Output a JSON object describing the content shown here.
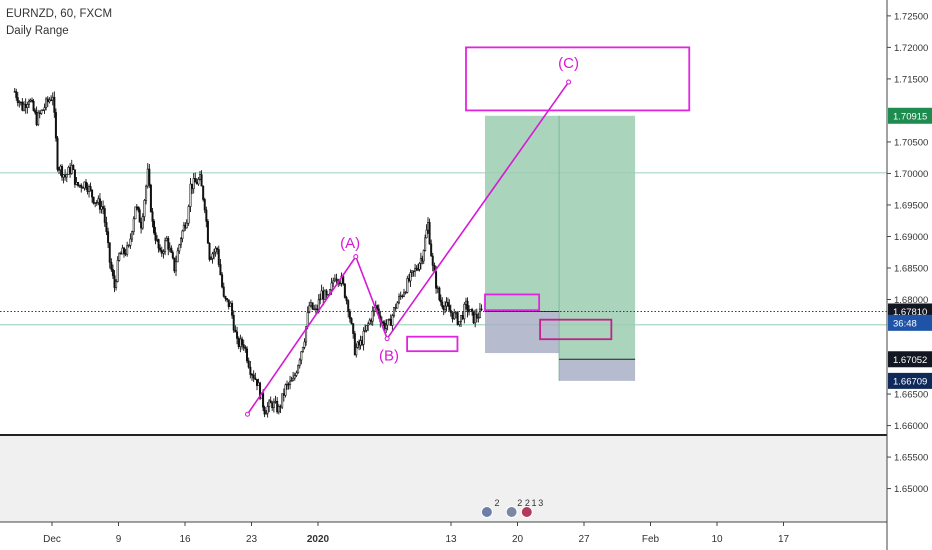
{
  "header": {
    "symbol": "EURNZD, 60, FXCM",
    "indicator": "Daily Range"
  },
  "chart_data": {
    "type": "candlestick",
    "symbol": "EURNZD",
    "interval": "60",
    "source": "FXCM",
    "ylim": [
      1.6447,
      1.7272
    ],
    "y_ticks": [
      "1.72500",
      "1.72000",
      "1.71500",
      "1.70500",
      "1.70000",
      "1.69500",
      "1.69000",
      "1.68500",
      "1.68000",
      "1.66500",
      "1.66000",
      "1.65500",
      "1.65000"
    ],
    "x_ticks": [
      {
        "label": "Dec",
        "x": 0
      },
      {
        "label": "9",
        "x": 7
      },
      {
        "label": "16",
        "x": 14
      },
      {
        "label": "23",
        "x": 21
      },
      {
        "label": "2020",
        "x": 28
      },
      {
        "label": "13",
        "x": 42
      },
      {
        "label": "20",
        "x": 49
      },
      {
        "label": "27",
        "x": 56
      },
      {
        "label": "Feb",
        "x": 63
      },
      {
        "label": "10",
        "x": 70
      },
      {
        "label": "17",
        "x": 77
      }
    ],
    "price_path": [
      [
        -3.5,
        1.713
      ],
      [
        -2.7,
        1.7105
      ],
      [
        -2.0,
        1.712
      ],
      [
        -1.2,
        1.7085
      ],
      [
        -0.2,
        1.711
      ],
      [
        0.5,
        1.7125
      ],
      [
        1.0,
        1.7015
      ],
      [
        1.8,
        1.6995
      ],
      [
        2.5,
        1.701
      ],
      [
        3.0,
        1.698
      ],
      [
        4.0,
        1.6985
      ],
      [
        4.8,
        1.696
      ],
      [
        5.8,
        1.6945
      ],
      [
        6.5,
        1.686
      ],
      [
        7.0,
        1.682
      ],
      [
        7.5,
        1.687
      ],
      [
        8.5,
        1.688
      ],
      [
        9.2,
        1.695
      ],
      [
        9.8,
        1.692
      ],
      [
        10.5,
        1.7
      ],
      [
        11.0,
        1.692
      ],
      [
        11.8,
        1.687
      ],
      [
        12.5,
        1.6895
      ],
      [
        13.3,
        1.685
      ],
      [
        14.0,
        1.69
      ],
      [
        14.6,
        1.693
      ],
      [
        15.0,
        1.698
      ],
      [
        16.0,
        1.699
      ],
      [
        16.5,
        1.695
      ],
      [
        17.0,
        1.687
      ],
      [
        17.8,
        1.688
      ],
      [
        18.5,
        1.68
      ],
      [
        19.2,
        1.679
      ],
      [
        19.9,
        1.673
      ],
      [
        20.6,
        1.673
      ],
      [
        21.3,
        1.669
      ],
      [
        22.0,
        1.667
      ],
      [
        22.8,
        1.6625
      ],
      [
        23.6,
        1.6635
      ],
      [
        24.3,
        1.6625
      ],
      [
        25.0,
        1.666
      ],
      [
        25.8,
        1.667
      ],
      [
        26.5,
        1.671
      ],
      [
        27.0,
        1.674
      ],
      [
        27.5,
        1.679
      ],
      [
        28.2,
        1.678
      ],
      [
        28.8,
        1.681
      ],
      [
        29.5,
        1.68
      ],
      [
        30.2,
        1.684
      ],
      [
        30.9,
        1.683
      ],
      [
        31.6,
        1.679
      ],
      [
        32.3,
        1.672
      ],
      [
        32.9,
        1.673
      ],
      [
        33.7,
        1.676
      ],
      [
        34.5,
        1.679
      ],
      [
        35.3,
        1.676
      ],
      [
        35.9,
        1.676
      ],
      [
        36.6,
        1.679
      ],
      [
        37.3,
        1.681
      ],
      [
        38.0,
        1.683
      ],
      [
        38.8,
        1.685
      ],
      [
        39.4,
        1.687
      ],
      [
        40.0,
        1.692
      ],
      [
        40.5,
        1.685
      ],
      [
        41.2,
        1.68
      ],
      [
        41.8,
        1.679
      ],
      [
        42.4,
        1.678
      ],
      [
        43.3,
        1.6765
      ],
      [
        44.0,
        1.679
      ],
      [
        44.8,
        1.677
      ],
      [
        45.8,
        1.6781
      ]
    ],
    "wave_labels": [
      {
        "text": "(A)",
        "x": 31.8,
        "y": 1.6882
      },
      {
        "text": "(B)",
        "x": 35.9,
        "y": 1.6703
      },
      {
        "text": "(C)",
        "x": 54.8,
        "y": 1.7167
      }
    ],
    "wave_path": [
      [
        21.0,
        1.6618
      ],
      [
        32.4,
        1.6868
      ],
      [
        35.7,
        1.6738
      ],
      [
        54.8,
        1.7145
      ]
    ],
    "horizontal_lines": [
      {
        "y": 1.7001,
        "color": "#a8d5c2"
      },
      {
        "y": 1.676,
        "color": "#a8d5c2"
      }
    ],
    "zones": [
      {
        "kind": "target",
        "x1": 46.0,
        "x2": 53.8,
        "y1": 1.70915,
        "y2": 1.6781,
        "color": "#9ccdb0"
      },
      {
        "kind": "target",
        "x1": 53.8,
        "x2": 61.8,
        "y1": 1.70915,
        "y2": 1.67052,
        "color": "#9ccdb0"
      },
      {
        "kind": "stop",
        "x1": 46.0,
        "x2": 53.8,
        "y1": 1.6781,
        "y2": 1.6715,
        "color": "#a9afc6"
      },
      {
        "kind": "stop",
        "x1": 53.8,
        "x2": 61.8,
        "y1": 1.67052,
        "y2": 1.66709,
        "color": "#a9afc6"
      }
    ],
    "boxes": [
      {
        "x1": 44.0,
        "x2": 67.5,
        "y1": 1.72,
        "y2": 1.71,
        "color": "#e025e0"
      },
      {
        "x1": 46.0,
        "x2": 51.7,
        "y1": 1.6808,
        "y2": 1.6783,
        "color": "#e025e0"
      },
      {
        "x1": 51.8,
        "x2": 59.3,
        "y1": 1.6768,
        "y2": 1.6737,
        "color": "#c0228a"
      },
      {
        "x1": 37.8,
        "x2": 43.1,
        "y1": 1.6741,
        "y2": 1.6718,
        "color": "#e025e0"
      }
    ],
    "price_badges": [
      {
        "value": "1.70915",
        "y": 1.70915,
        "bg": "#1e8c4e"
      },
      {
        "value": "1.67810",
        "y": 1.6781,
        "bg": "#131722"
      },
      {
        "value": "36:48",
        "y": 1.6763,
        "bg": "#1e53a8"
      },
      {
        "value": "1.67052",
        "y": 1.67052,
        "bg": "#131722"
      },
      {
        "value": "1.66709",
        "y": 1.66709,
        "bg": "#0f2a5a"
      }
    ],
    "current_price": 1.6781,
    "divider_price": 1.6585,
    "event_icons": [
      "2",
      "2",
      "2",
      "1",
      "3"
    ],
    "colors": {
      "candle": "#111111",
      "wave": "#d61ad6",
      "current_line": "#1b3f8a",
      "lower_pane": "#f0f0f0"
    }
  }
}
